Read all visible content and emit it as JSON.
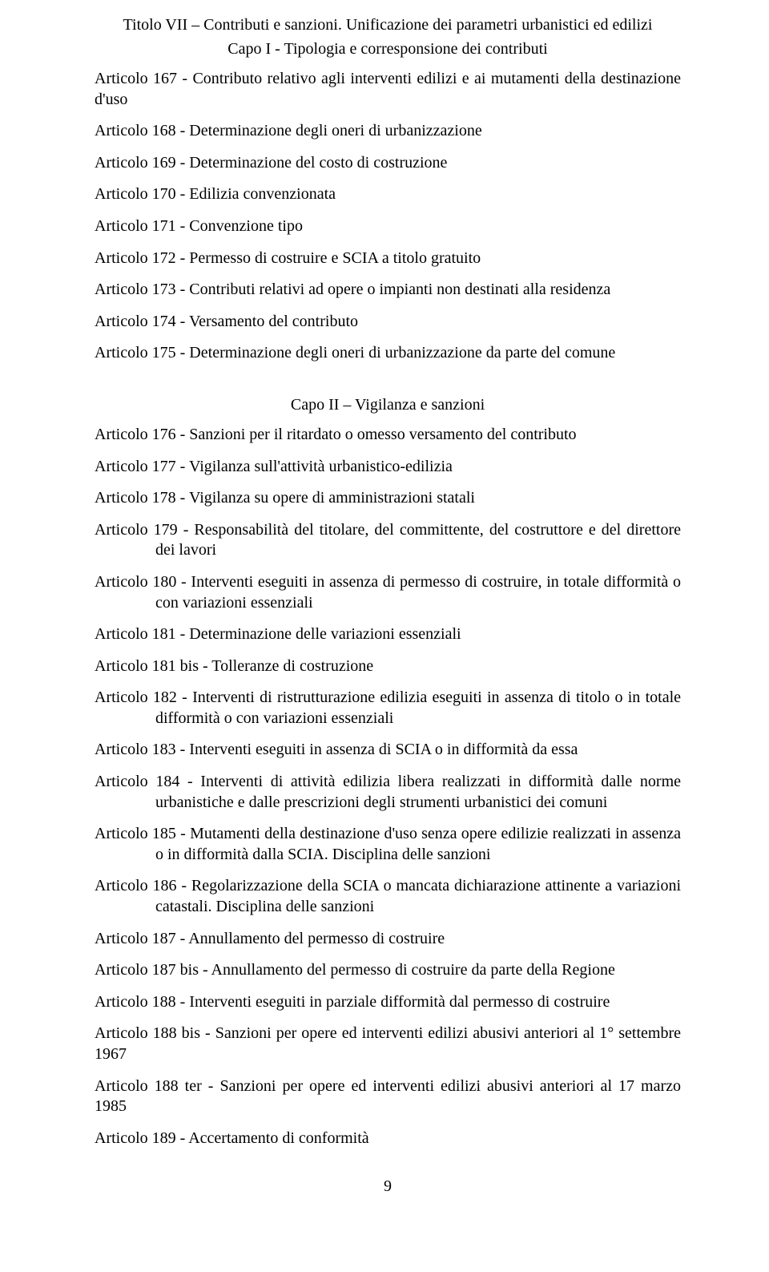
{
  "header": {
    "title_line": "Titolo VII – Contributi e sanzioni. Unificazione dei parametri urbanistici ed edilizi",
    "capo1": "Capo I - Tipologia e corresponsione dei contributi"
  },
  "capo1_articles": [
    "Articolo 167 - Contributo relativo agli interventi edilizi e ai mutamenti della destinazione d'uso",
    "Articolo 168 - Determinazione degli oneri di urbanizzazione",
    "Articolo 169 - Determinazione del costo di costruzione",
    "Articolo 170 - Edilizia convenzionata",
    "Articolo 171 - Convenzione tipo",
    "Articolo 172 - Permesso di costruire e SCIA a titolo gratuito",
    "Articolo 173 - Contributi relativi ad opere o impianti non destinati alla residenza",
    "Articolo 174 - Versamento del contributo",
    "Articolo 175 - Determinazione degli oneri di urbanizzazione da parte del comune"
  ],
  "capo2_header": "Capo II – Vigilanza e sanzioni",
  "capo2_articles": [
    {
      "text": "Articolo 176 - Sanzioni per il ritardato o omesso versamento del contributo",
      "hang": false
    },
    {
      "text": "Articolo 177 - Vigilanza sull'attività urbanistico-edilizia",
      "hang": false
    },
    {
      "text": "Articolo 178 - Vigilanza su opere di amministrazioni statali",
      "hang": false
    },
    {
      "text": "Articolo 179 - Responsabilità del titolare, del committente, del costruttore e del direttore dei lavori",
      "hang": true
    },
    {
      "text": "Articolo 180 - Interventi eseguiti in assenza di permesso di costruire, in totale difformità o con variazioni essenziali",
      "hang": true
    },
    {
      "text": "Articolo 181 - Determinazione delle variazioni essenziali",
      "hang": false
    },
    {
      "text": "Articolo 181 bis - Tolleranze di costruzione",
      "hang": false
    },
    {
      "text": "Articolo 182 - Interventi di ristrutturazione edilizia eseguiti in assenza di titolo o in totale difformità o con variazioni essenziali",
      "hang": true
    },
    {
      "text": "Articolo 183 - Interventi eseguiti in assenza di SCIA o in difformità da essa",
      "hang": false
    },
    {
      "text": "Articolo 184 - Interventi di attività edilizia libera realizzati in difformità dalle norme urbanistiche e dalle prescrizioni degli strumenti urbanistici dei comuni",
      "hang": true
    },
    {
      "text": "Articolo 185 - Mutamenti della destinazione d'uso senza opere edilizie realizzati in assenza o in difformità dalla SCIA. Disciplina delle sanzioni",
      "hang": true
    },
    {
      "text": "Articolo 186 - Regolarizzazione della SCIA o mancata dichiarazione attinente a variazioni catastali. Disciplina delle sanzioni",
      "hang": true
    },
    {
      "text": "Articolo 187 - Annullamento del permesso di costruire",
      "hang": false
    },
    {
      "text": "Articolo 187 bis - Annullamento del permesso di costruire da parte della Regione",
      "hang": false
    },
    {
      "text": "Articolo 188 - Interventi eseguiti in parziale difformità dal permesso di costruire",
      "hang": false
    },
    {
      "text": "Articolo 188 bis - Sanzioni per opere ed interventi edilizi abusivi anteriori al 1° settembre 1967",
      "hang": false
    },
    {
      "text": "Articolo 188 ter - Sanzioni per opere ed interventi edilizi abusivi anteriori al 17 marzo 1985",
      "hang": false
    },
    {
      "text": "Articolo 189 - Accertamento di conformità",
      "hang": false
    }
  ],
  "page_number": "9"
}
